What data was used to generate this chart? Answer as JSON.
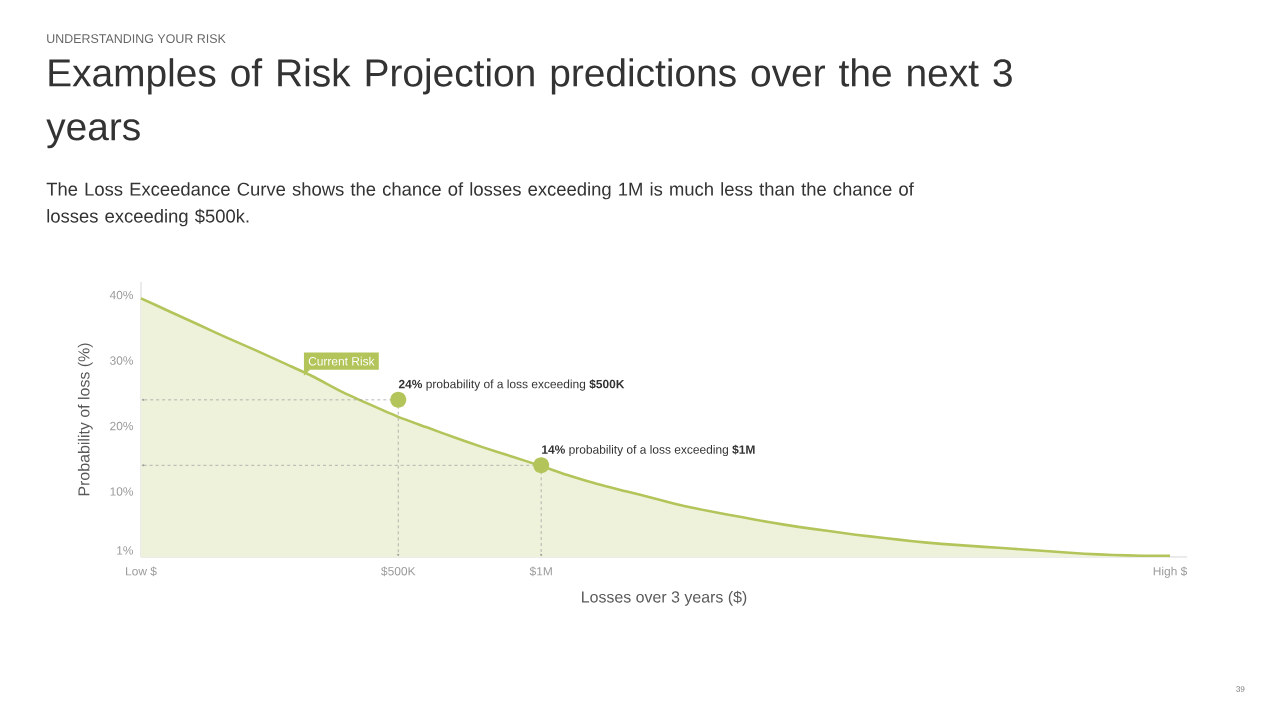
{
  "chart_data": {
    "type": "area",
    "title": "Examples of Risk Projection predictions over the next 3 years",
    "subtitle": "The Loss Exceedance Curve shows the chance of losses exceeding 1M is much less than the chance of losses exceeding $500k.",
    "xlabel": "Losses over 3 years  ($)",
    "ylabel": "Probability of loss (%)",
    "categories": [
      "Low $",
      null,
      null,
      null,
      null,
      null,
      null,
      null,
      null,
      "$500K",
      null,
      null,
      null,
      null,
      "$1M",
      null,
      null,
      null,
      null,
      null,
      null,
      null,
      null,
      null,
      null,
      null,
      null,
      null,
      null,
      null,
      null,
      null,
      null,
      null,
      null,
      null,
      "High $"
    ],
    "series": [
      {
        "color": "#b3c55a",
        "values": [
          39.5,
          37.5,
          35.5,
          33.5,
          31.6,
          29.6,
          27.6,
          25.3,
          23.3,
          21.4,
          19.8,
          18.2,
          16.7,
          15.3,
          13.9,
          12.4,
          11.1,
          10.0,
          8.9,
          7.8,
          6.9,
          6.1,
          5.3,
          4.6,
          4.0,
          3.4,
          2.9,
          2.4,
          2.0,
          1.7,
          1.4,
          1.1,
          0.8,
          0.5,
          0.3,
          0.2,
          0.2
        ]
      }
    ],
    "ylim": [
      0,
      42
    ],
    "yticks": [
      {
        "value": 1,
        "label": "1%"
      },
      {
        "value": 10,
        "label": "10%"
      },
      {
        "value": 20,
        "label": "20%"
      },
      {
        "value": 30,
        "label": "30%"
      },
      {
        "value": 40,
        "label": "40%"
      }
    ],
    "annotations": [
      "UNDERSTANDING YOUR RISK",
      "Current Risk",
      {
        "text": "**24%** probability of a loss exceeding **$500K**",
        "x": "$500K",
        "y": 24
      },
      {
        "text": "**14%** probability of a loss exceeding **$1M**",
        "x": "$1M",
        "y": 14
      },
      "39"
    ],
    "grid": false
  }
}
